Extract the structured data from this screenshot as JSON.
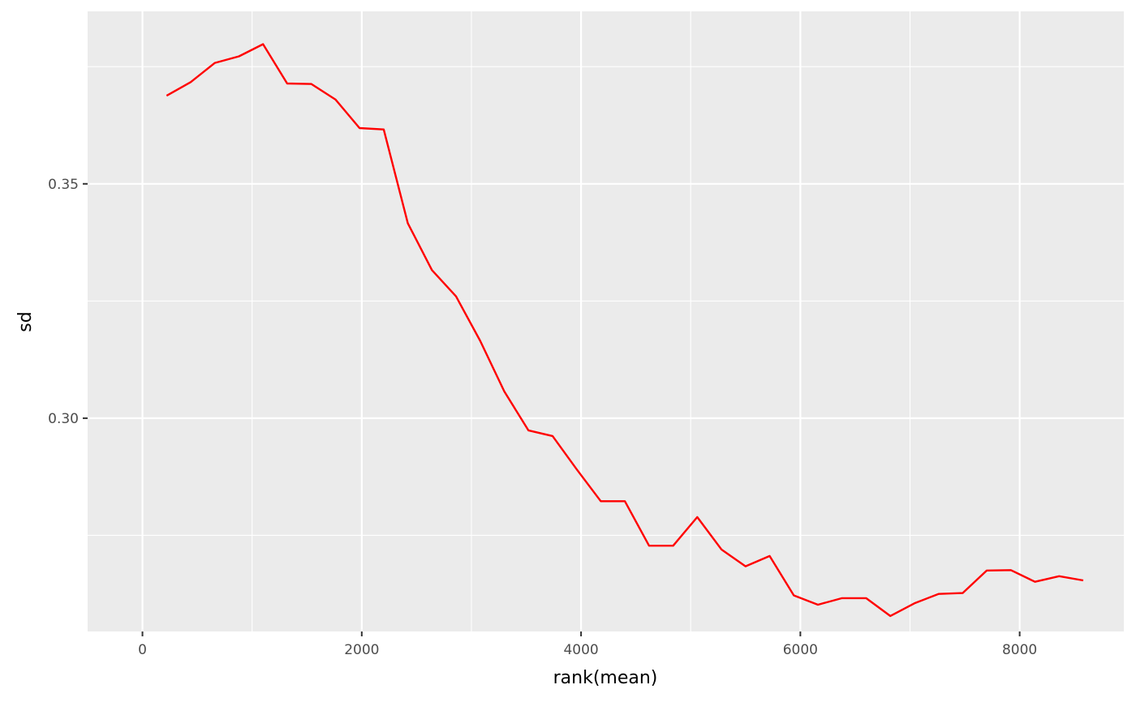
{
  "chart_data": {
    "type": "line",
    "title": "",
    "xlabel": "rank(mean)",
    "ylabel": "sd",
    "xlim": [
      -500,
      8950
    ],
    "ylim": [
      0.2545,
      0.3868
    ],
    "x_ticks": [
      0,
      2000,
      4000,
      6000,
      8000
    ],
    "x_tick_labels": [
      "0",
      "2000",
      "4000",
      "6000",
      "8000"
    ],
    "y_ticks": [
      0.3,
      0.35
    ],
    "y_tick_labels": [
      "0.30",
      "0.35"
    ],
    "x_minor_ticks": [
      1000,
      3000,
      5000,
      7000
    ],
    "y_minor_ticks": [
      0.275,
      0.325,
      0.375
    ],
    "grid": true,
    "background_color": "#ebebeb",
    "grid_color": "#ffffff",
    "line_color": "#ff0000",
    "series": [
      {
        "x": [
          220,
          440,
          660,
          880,
          1100,
          1320,
          1540,
          1760,
          1980,
          2200,
          2420,
          2640,
          2860,
          3080,
          3300,
          3520,
          3740,
          3960,
          4180,
          4400,
          4620,
          4840,
          5060,
          5280,
          5500,
          5720,
          5940,
          6160,
          6380,
          6600,
          6820,
          7040,
          7260,
          7480,
          7700,
          7920,
          8140,
          8360,
          8580
        ],
        "values": [
          0.3688,
          0.3717,
          0.3758,
          0.3772,
          0.3798,
          0.3714,
          0.3713,
          0.368,
          0.3619,
          0.3616,
          0.3416,
          0.3316,
          0.326,
          0.3165,
          0.3057,
          0.2974,
          0.2962,
          0.2891,
          0.2823,
          0.2823,
          0.2728,
          0.2728,
          0.2789,
          0.272,
          0.2684,
          0.2706,
          0.2622,
          0.2602,
          0.2616,
          0.2616,
          0.2578,
          0.2605,
          0.2625,
          0.2627,
          0.2675,
          0.2676,
          0.2651,
          0.2663,
          0.2654
        ]
      }
    ]
  }
}
